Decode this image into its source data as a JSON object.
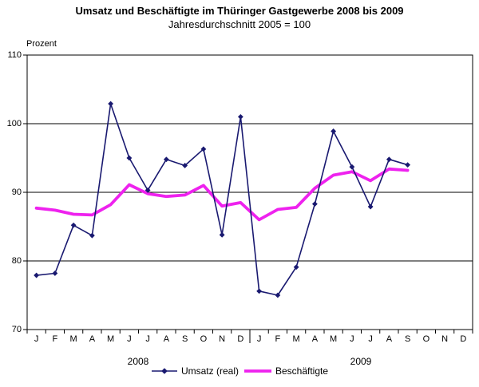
{
  "title": "Umsatz und Beschäftigte im Thüringer Gastgewerbe 2008 bis 2009",
  "subtitle": "Jahresdurchschnitt 2005 = 100",
  "y_axis_label": "Prozent",
  "axis_color": "#000000",
  "chart_data": {
    "type": "line",
    "x_categories": [
      "J",
      "F",
      "M",
      "A",
      "M",
      "J",
      "J",
      "A",
      "S",
      "O",
      "N",
      "D",
      "J",
      "F",
      "M",
      "A",
      "M",
      "J",
      "J",
      "A",
      "S",
      "O",
      "N",
      "D"
    ],
    "year_groups": [
      {
        "label": "2008",
        "slots": [
          0,
          11
        ]
      },
      {
        "label": "2009",
        "slots": [
          12,
          23
        ]
      }
    ],
    "y_ticks": [
      110,
      100,
      90,
      80,
      70
    ],
    "ylim": [
      70,
      110
    ],
    "grid": "horizontal",
    "legend_position": "bottom-center",
    "series": [
      {
        "name": "Umsatz (real)",
        "color": "#191970",
        "marker": "diamond",
        "line_width": 1.6,
        "values": [
          77.9,
          78.2,
          85.2,
          83.7,
          102.9,
          95.0,
          90.3,
          94.8,
          93.9,
          96.3,
          83.8,
          101.0,
          75.6,
          75.0,
          79.1,
          88.3,
          98.9,
          93.7,
          87.9,
          94.8,
          94.0,
          null,
          null,
          null
        ]
      },
      {
        "name": "Beschäftigte",
        "color": "#EE22EE",
        "marker": "none",
        "line_width": 3.8,
        "values": [
          87.7,
          87.4,
          86.8,
          86.7,
          88.2,
          91.1,
          89.8,
          89.4,
          89.6,
          91.0,
          88.0,
          88.5,
          86.0,
          87.5,
          87.8,
          90.6,
          92.5,
          93.0,
          91.7,
          93.4,
          93.2,
          null,
          null,
          null
        ]
      }
    ]
  }
}
